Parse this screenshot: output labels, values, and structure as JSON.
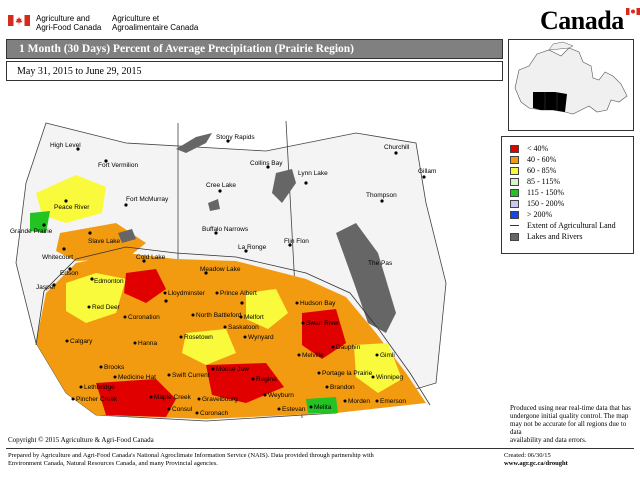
{
  "header": {
    "dept_en_line1": "Agriculture and",
    "dept_en_line2": "Agri-Food Canada",
    "dept_fr_line1": "Agriculture et",
    "dept_fr_line2": "Agroalimentaire Canada",
    "wordmark": "Canada"
  },
  "title": "1 Month (30 Days) Percent of Average Precipitation  (Prairie Region)",
  "date_range": "May 31, 2015 to June 29, 2015",
  "legend": {
    "items": [
      {
        "label": "< 40%",
        "color": "#e00000"
      },
      {
        "label": "40 - 60%",
        "color": "#f39b10"
      },
      {
        "label": "60 - 85%",
        "color": "#fafa3c"
      },
      {
        "label": "85 - 115%",
        "color": "#d6f5c8"
      },
      {
        "label": "115 - 150%",
        "color": "#22c322"
      },
      {
        "label": "150 - 200%",
        "color": "#c8c8f0"
      },
      {
        "label": "> 200%",
        "color": "#1448e6"
      }
    ],
    "ag_extent_label": "Extent of Agricultural Land",
    "lakes_label": "Lakes and Rivers"
  },
  "note": [
    "Produced using near real-time data that has",
    "undergone initial quality control.  The map",
    "may not be accurate for all regions due to data",
    "availability and data errors."
  ],
  "copyright": "Copyright © 2015 Agriculture & Agri-Food Canada",
  "footer": {
    "line1": "Prepared by Agriculture and Agri-Food Canada's National Agroclimate Information Service (NAIS).  Data provided through partnership with",
    "line2": "Environment Canada, Natural Resources Canada, and many Provincial agencies.",
    "created": "Created: 06/30/15",
    "url": "www.agr.gc.ca/drought"
  },
  "places": [
    "High Level",
    "Fort Vermilion",
    "Stony Rapids",
    "Churchill",
    "Collins Bay",
    "Peace River",
    "Fort McMurray",
    "Cree Lake",
    "Lynn Lake",
    "Gillam",
    "Grande Prairie",
    "Slave Lake",
    "Buffalo Narrows",
    "Thompson",
    "Whitecourt",
    "La Ronge",
    "Flin Flon",
    "Edson",
    "Cold Lake",
    "Edmonton",
    "Meadow Lake",
    "Jasper",
    "Lloydminster",
    "Prince Albert",
    "The Pas",
    "Red Deer",
    "Coronation",
    "North Battleford",
    "Melfort",
    "Hudson Bay",
    "Saskatoon",
    "Wynyard",
    "Swan River",
    "Calgary",
    "Hanna",
    "Rosetown",
    "Dauphin",
    "Melville",
    "Gimli",
    "Brooks",
    "Swift Current",
    "Moose Jaw",
    "Regina",
    "Portage la Prairie",
    "Winnipeg",
    "Medicine Hat",
    "Lethbridge",
    "Maple Creek",
    "Weyburn",
    "Brandon",
    "Pincher Creek",
    "Gravelbourg",
    "Consul",
    "Coronach",
    "Estevan",
    "Melita",
    "Morden",
    "Emerson"
  ],
  "places_outer": [
    "Stony Rapids",
    "Churchill",
    "Collins Bay",
    "Cree Lake",
    "Lynn Lake",
    "Gillam",
    "Thompson",
    "Flin Flon"
  ]
}
